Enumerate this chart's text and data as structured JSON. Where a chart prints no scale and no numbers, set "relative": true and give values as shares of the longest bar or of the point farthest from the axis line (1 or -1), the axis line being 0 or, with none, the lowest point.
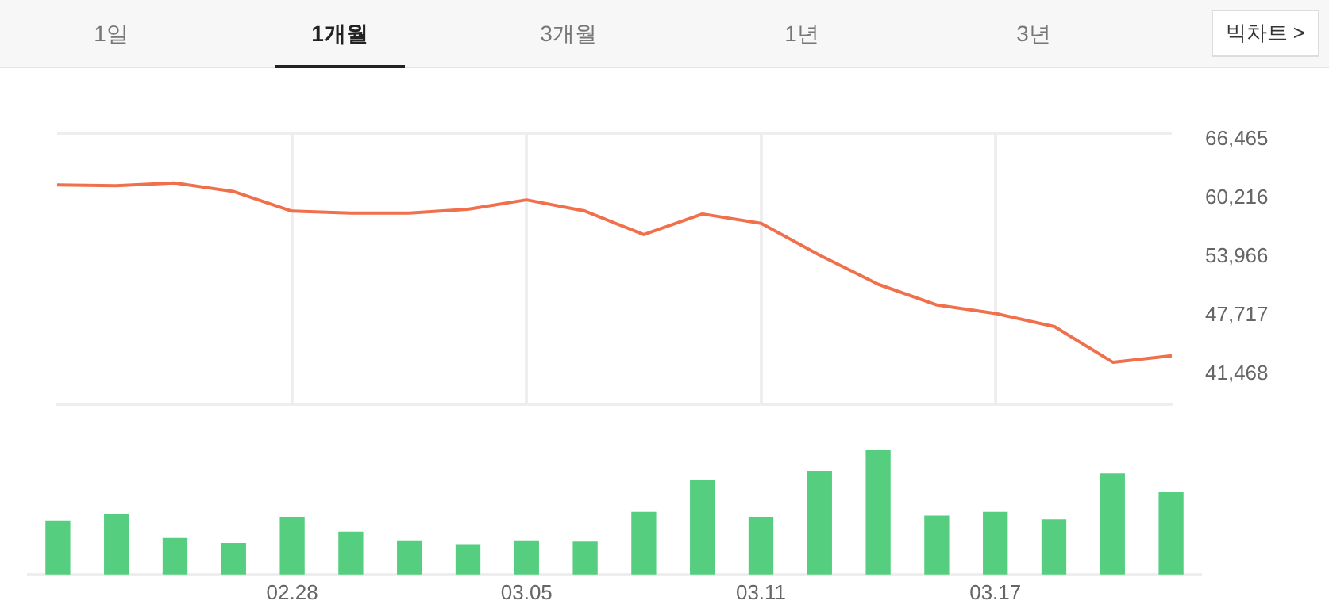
{
  "chart_data": [
    {
      "type": "line",
      "annotations": [
        "1일",
        "1개월",
        "3개월",
        "1년",
        "3년",
        "빅차트 >"
      ],
      "categories": [
        null,
        null,
        null,
        null,
        "02.28",
        null,
        null,
        null,
        "03.05",
        null,
        null,
        null,
        "03.11",
        null,
        null,
        null,
        "03.17",
        null,
        null,
        null
      ],
      "series": [
        {
          "color": "#f0704c",
          "values": [
            61600,
            61500,
            61800,
            60900,
            58800,
            58600,
            58600,
            59000,
            60000,
            58800,
            56300,
            58500,
            57500,
            54100,
            51000,
            48800,
            47900,
            46500,
            42700,
            43400
          ]
        }
      ],
      "ylim": [
        38200,
        67100
      ],
      "yticks": [
        {
          "value": 66465,
          "label": "66,465"
        },
        {
          "value": 60216,
          "label": "60,216"
        },
        {
          "value": 53966,
          "label": "53,966"
        },
        {
          "value": 47717,
          "label": "47,717"
        },
        {
          "value": 41468,
          "label": "41,468"
        }
      ],
      "grid": "x",
      "tick_labels": "y",
      "marker": "none"
    },
    {
      "type": "bar",
      "relative": true,
      "categories": [
        null,
        null,
        null,
        null,
        "02.28",
        null,
        null,
        null,
        "03.05",
        null,
        null,
        null,
        "03.11",
        null,
        null,
        null,
        "03.17",
        null,
        null,
        null
      ],
      "series": [
        {
          "color": "#55cf7f",
          "values": [
            0.43,
            0.48,
            0.29,
            0.25,
            0.46,
            0.34,
            0.27,
            0.24,
            0.27,
            0.26,
            0.5,
            0.76,
            0.46,
            0.83,
            1,
            0.47,
            0.5,
            0.44,
            0.81,
            0.66
          ]
        }
      ],
      "tick_labels": "x"
    }
  ]
}
